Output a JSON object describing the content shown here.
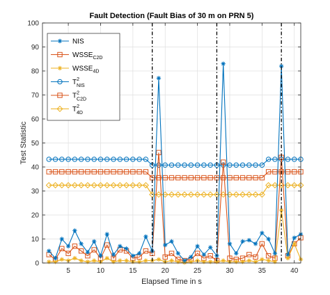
{
  "chart_data": {
    "type": "line",
    "title": "Fault Detection (Fault Bias of 30 m on PRN 5)",
    "xlabel": "Elapsed Time in s",
    "ylabel": "Test Statistic",
    "xlim": [
      1,
      41
    ],
    "ylim": [
      0,
      100
    ],
    "xticks": [
      5,
      10,
      15,
      20,
      25,
      30,
      35,
      40
    ],
    "yticks": [
      0,
      10,
      20,
      30,
      40,
      50,
      60,
      70,
      80,
      90,
      100
    ],
    "grid": true,
    "legend_position": "top-left",
    "x": [
      2,
      3,
      4,
      5,
      6,
      7,
      8,
      9,
      10,
      11,
      12,
      13,
      14,
      15,
      16,
      17,
      18,
      19,
      20,
      21,
      22,
      23,
      24,
      25,
      26,
      27,
      28,
      29,
      30,
      31,
      32,
      33,
      34,
      35,
      36,
      37,
      38,
      39,
      40,
      41
    ],
    "vlines": [
      18,
      28,
      38
    ],
    "series": [
      {
        "name": "NIS",
        "legend": {
          "base": "NIS",
          "sup": "",
          "sub": ""
        },
        "color": "#0072BD",
        "marker": "asterisk",
        "dash": "",
        "values": [
          5,
          2,
          10,
          7,
          13.5,
          8,
          4.5,
          9,
          3,
          12,
          3.5,
          7,
          6,
          3,
          4,
          11,
          5,
          77,
          7.5,
          9,
          4,
          1,
          2.5,
          7,
          3.5,
          6.5,
          3,
          83,
          8,
          4,
          9,
          9.5,
          8,
          12.5,
          10,
          4,
          82,
          3.5,
          10.5,
          12
        ]
      },
      {
        "name": "WSSE C2D",
        "legend": {
          "base": "WSSE",
          "sup": "",
          "sub": "C2D"
        },
        "color": "#D95319",
        "marker": "square",
        "dash": "",
        "values": [
          3.5,
          1.5,
          6,
          4,
          7,
          5,
          3,
          5.5,
          2,
          7.5,
          2,
          5.5,
          5,
          2,
          2.5,
          5,
          4,
          46,
          2.5,
          4,
          1.5,
          1,
          1.5,
          4,
          2,
          3,
          1,
          42,
          2,
          1.5,
          2,
          3.5,
          2.5,
          8,
          3,
          2,
          44,
          3,
          8,
          10.5
        ]
      },
      {
        "name": "WSSE 4D",
        "legend": {
          "base": "WSSE",
          "sup": "",
          "sub": "4D"
        },
        "color": "#EDB120",
        "marker": "asterisk",
        "dash": "",
        "values": [
          0.5,
          0.5,
          1.5,
          1,
          2,
          1,
          0.5,
          1,
          0.5,
          2,
          0.5,
          1,
          1,
          0.5,
          0.5,
          1,
          1,
          1.5,
          0.5,
          1,
          0.5,
          0.2,
          0.5,
          1,
          0.5,
          0.5,
          0.5,
          1,
          0.5,
          0.5,
          0.5,
          1,
          0.5,
          1.5,
          1,
          0.5,
          22,
          2,
          8,
          1.5
        ]
      },
      {
        "name": "T2 NIS",
        "legend": {
          "base": "T",
          "sup": "2",
          "sub": "NIS"
        },
        "color": "#0072BD",
        "marker": "circle",
        "dash": "",
        "values": [
          43.2,
          43.2,
          43.2,
          43.2,
          43.2,
          43.2,
          43.2,
          43.2,
          43.2,
          43.2,
          43.2,
          43.2,
          43.2,
          43.2,
          43.2,
          43.2,
          40.8,
          40.8,
          40.8,
          40.8,
          40.8,
          40.8,
          40.8,
          40.8,
          40.8,
          40.8,
          40.8,
          40.8,
          40.8,
          40.8,
          40.8,
          40.8,
          40.8,
          40.8,
          43.2,
          43.2,
          43.2,
          43.2,
          43.2,
          43.2
        ]
      },
      {
        "name": "T2 C2D",
        "legend": {
          "base": "T",
          "sup": "2",
          "sub": "C2D"
        },
        "color": "#D95319",
        "marker": "square",
        "dash": "",
        "values": [
          38,
          38,
          38,
          38,
          38,
          38,
          38,
          38,
          38,
          38,
          38,
          38,
          38,
          38,
          38,
          38,
          35.5,
          35.5,
          35.5,
          35.5,
          35.5,
          35.5,
          35.5,
          35.5,
          35.5,
          35.5,
          35.5,
          35.5,
          35.5,
          35.5,
          35.5,
          35.5,
          35.5,
          35.5,
          38,
          38,
          38,
          38,
          38,
          38
        ]
      },
      {
        "name": "T2 4D",
        "legend": {
          "base": "T",
          "sup": "2",
          "sub": "4D"
        },
        "color": "#EDB120",
        "marker": "diamond",
        "dash": "",
        "values": [
          32.4,
          32.4,
          32.4,
          32.4,
          32.4,
          32.4,
          32.4,
          32.4,
          32.4,
          32.4,
          32.4,
          32.4,
          32.4,
          32.4,
          32.4,
          32.4,
          28.5,
          28.5,
          28.5,
          28.5,
          28.5,
          28.5,
          28.5,
          28.5,
          28.5,
          28.5,
          28.5,
          28.5,
          28.5,
          28.5,
          28.5,
          28.5,
          28.5,
          28.5,
          32.4,
          32.4,
          32.4,
          32.4,
          32.4,
          32.4
        ]
      }
    ]
  }
}
